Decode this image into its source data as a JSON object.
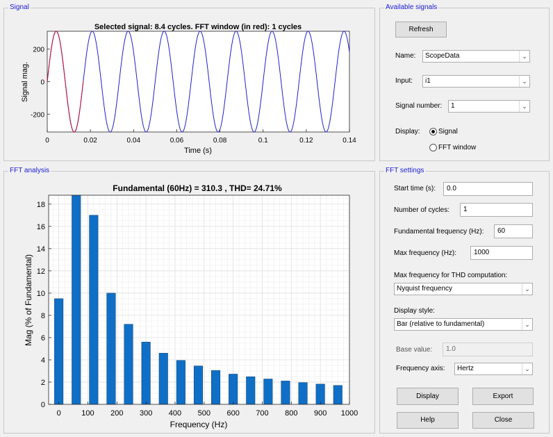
{
  "signal_panel": {
    "title": "Signal",
    "plot_title": "Selected signal: 8.4 cycles. FFT window (in red): 1 cycles",
    "xlabel": "Time (s)",
    "ylabel": "Signal mag.",
    "x_ticks": [
      "0",
      "0.02",
      "0.04",
      "0.06",
      "0.08",
      "0.1",
      "0.12",
      "0.14"
    ],
    "y_ticks": [
      "200",
      "0",
      "-200"
    ]
  },
  "available_signals": {
    "title": "Available signals",
    "refresh_label": "Refresh",
    "name_label": "Name:",
    "name_value": "ScopeData",
    "input_label": "Input:",
    "input_value": "i1",
    "signal_number_label": "Signal number:",
    "signal_number_value": "1",
    "display_label": "Display:",
    "display_options": [
      "Signal",
      "FFT window"
    ],
    "display_selected": "Signal"
  },
  "fft_analysis": {
    "title": "FFT analysis",
    "plot_title": "Fundamental (60Hz) = 310.3 , THD= 24.71%",
    "xlabel": "Frequency (Hz)",
    "ylabel": "Mag (% of Fundamental)",
    "x_ticks": [
      "0",
      "100",
      "200",
      "300",
      "400",
      "500",
      "600",
      "700",
      "800",
      "900",
      "1000"
    ],
    "y_ticks": [
      "0",
      "2",
      "4",
      "6",
      "8",
      "10",
      "12",
      "14",
      "16",
      "18"
    ]
  },
  "fft_settings": {
    "title": "FFT settings",
    "start_time_label": "Start time (s):",
    "start_time_value": "0.0",
    "num_cycles_label": "Number of cycles:",
    "num_cycles_value": "1",
    "fund_freq_label": "Fundamental frequency (Hz):",
    "fund_freq_value": "60",
    "max_freq_label": "Max frequency (Hz):",
    "max_freq_value": "1000",
    "max_freq_thd_label": "Max frequency for THD computation:",
    "max_freq_thd_value": "Nyquist frequency",
    "display_style_label": "Display style:",
    "display_style_value": "Bar (relative to fundamental)",
    "base_value_label": "Base value:",
    "base_value_value": "1.0",
    "freq_axis_label": "Frequency axis:",
    "freq_axis_value": "Hertz",
    "display_btn": "Display",
    "export_btn": "Export",
    "help_btn": "Help",
    "close_btn": "Close"
  },
  "colors": {
    "signal_line": "#1f1fd0",
    "fft_window_line": "#c0143c",
    "bar_fill": "#0f6fc6",
    "bar_edge": "#0a3d6e",
    "group_title": "#1a1ad4"
  },
  "chart_data": [
    {
      "type": "line",
      "title": "Selected signal: 8.4 cycles. FFT window (in red): 1 cycles",
      "xlabel": "Time (s)",
      "ylabel": "Signal mag.",
      "xlim": [
        0,
        0.14
      ],
      "ylim": [
        -310,
        310
      ],
      "signal": {
        "amplitude": 310.3,
        "frequency_hz": 60,
        "duration_s": 0.14
      },
      "series": [
        {
          "x_range": [
            0,
            0.14
          ],
          "color": "#1f1fd0"
        },
        {
          "x_range": [
            0,
            0.016667
          ],
          "color": "#c0143c"
        }
      ],
      "grid": false
    },
    {
      "type": "bar",
      "title": "Fundamental (60Hz) = 310.3 , THD= 24.71%",
      "xlabel": "Frequency (Hz)",
      "ylabel": "Mag (% of Fundamental)",
      "xlim": [
        -35,
        1000
      ],
      "ylim": [
        0,
        18.8
      ],
      "x": [
        0,
        60,
        120,
        180,
        240,
        300,
        360,
        420,
        480,
        540,
        600,
        660,
        720,
        780,
        840,
        900,
        960
      ],
      "values": [
        9.5,
        18.8,
        17.0,
        10.0,
        7.2,
        5.6,
        4.6,
        3.95,
        3.45,
        3.05,
        2.72,
        2.48,
        2.28,
        2.1,
        1.96,
        1.82,
        1.7
      ],
      "grid": true
    }
  ]
}
